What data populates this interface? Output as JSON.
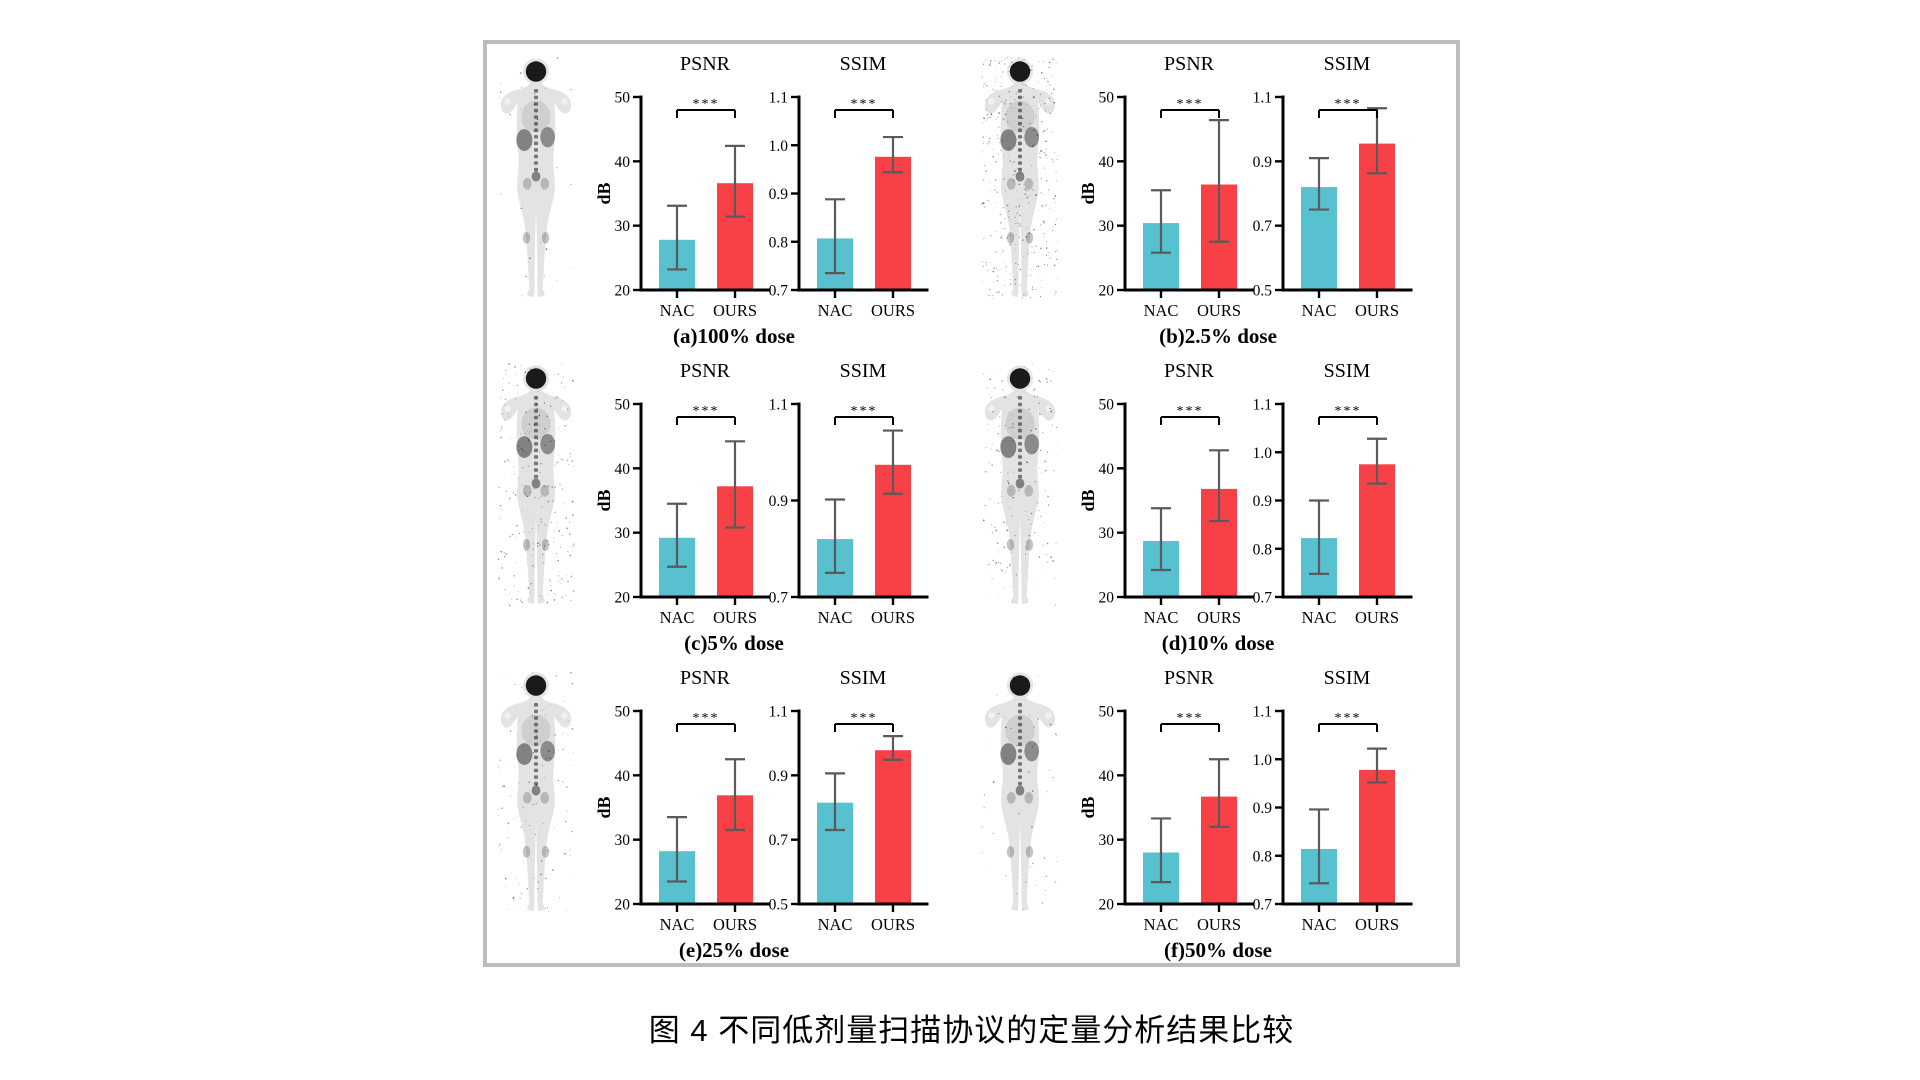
{
  "figure": {
    "caption": "图 4 不同低剂量扫描协议的定量分析结果比较"
  },
  "colors": {
    "nac_bar": "#57c1cf",
    "ours_bar": "#f84146",
    "error_bar": "#5a5a5a",
    "axis": "#000000",
    "box_border": "#bcbcbc",
    "scan_body": "#e3e3e3",
    "scan_dark": "#1a1a1a"
  },
  "chart_data": [
    {
      "panel": "a",
      "dose_label": "(a)100% dose",
      "body_image": "whole-body-pet-scan",
      "body_noise": 0.04,
      "psnr": {
        "type": "bar",
        "title": "PSNR",
        "ylabel": "dB",
        "categories": [
          "NAC",
          "OURS"
        ],
        "values": [
          27.8,
          36.6
        ],
        "err_lo": [
          23.2,
          31.4
        ],
        "err_hi": [
          33.1,
          42.4
        ],
        "ylim": [
          20,
          50
        ],
        "yticks": [
          "20",
          "30",
          "40",
          "50"
        ],
        "significance": "***"
      },
      "ssim": {
        "type": "bar",
        "title": "SSIM",
        "ylabel": "",
        "categories": [
          "NAC",
          "OURS"
        ],
        "values": [
          0.807,
          0.976
        ],
        "err_lo": [
          0.735,
          0.944
        ],
        "err_hi": [
          0.888,
          1.017
        ],
        "ylim": [
          0.7,
          1.1
        ],
        "yticks": [
          "0.7",
          "0.8",
          "0.9",
          "1.0",
          "1.1"
        ],
        "significance": "***"
      }
    },
    {
      "panel": "b",
      "dose_label": "(b)2.5% dose",
      "body_image": "whole-body-pet-scan",
      "body_noise": 0.55,
      "psnr": {
        "type": "bar",
        "title": "PSNR",
        "ylabel": "dB",
        "categories": [
          "NAC",
          "OURS"
        ],
        "values": [
          30.4,
          36.4
        ],
        "err_lo": [
          25.8,
          27.5
        ],
        "err_hi": [
          35.5,
          46.4
        ],
        "ylim": [
          20,
          50
        ],
        "yticks": [
          "20",
          "30",
          "40",
          "50"
        ],
        "significance": "***"
      },
      "ssim": {
        "type": "bar",
        "title": "SSIM",
        "ylabel": "",
        "categories": [
          "NAC",
          "OURS"
        ],
        "values": [
          0.82,
          0.955
        ],
        "err_lo": [
          0.75,
          0.863
        ],
        "err_hi": [
          0.91,
          1.065
        ],
        "ylim": [
          0.5,
          1.1
        ],
        "yticks": [
          "0.5",
          "0.7",
          "0.9",
          "1.1"
        ],
        "significance": "***"
      }
    },
    {
      "panel": "c",
      "dose_label": "(c)5% dose",
      "body_image": "whole-body-pet-scan",
      "body_noise": 0.35,
      "psnr": {
        "type": "bar",
        "title": "PSNR",
        "ylabel": "dB",
        "categories": [
          "NAC",
          "OURS"
        ],
        "values": [
          29.2,
          37.2
        ],
        "err_lo": [
          24.7,
          30.8
        ],
        "err_hi": [
          34.5,
          44.2
        ],
        "ylim": [
          20,
          50
        ],
        "yticks": [
          "20",
          "30",
          "40",
          "50"
        ],
        "significance": "***"
      },
      "ssim": {
        "type": "bar",
        "title": "SSIM",
        "ylabel": "",
        "categories": [
          "NAC",
          "OURS"
        ],
        "values": [
          0.82,
          0.974
        ],
        "err_lo": [
          0.75,
          0.914
        ],
        "err_hi": [
          0.902,
          1.045
        ],
        "ylim": [
          0.7,
          1.1
        ],
        "yticks": [
          "0.7",
          "0.9",
          "1.1"
        ],
        "significance": "***"
      }
    },
    {
      "panel": "d",
      "dose_label": "(d)10% dose",
      "body_image": "whole-body-pet-scan",
      "body_noise": 0.25,
      "psnr": {
        "type": "bar",
        "title": "PSNR",
        "ylabel": "dB",
        "categories": [
          "NAC",
          "OURS"
        ],
        "values": [
          28.7,
          36.8
        ],
        "err_lo": [
          24.2,
          31.8
        ],
        "err_hi": [
          33.8,
          42.8
        ],
        "ylim": [
          20,
          50
        ],
        "yticks": [
          "20",
          "30",
          "40",
          "50"
        ],
        "significance": "***"
      },
      "ssim": {
        "type": "bar",
        "title": "SSIM",
        "ylabel": "",
        "categories": [
          "NAC",
          "OURS"
        ],
        "values": [
          0.822,
          0.975
        ],
        "err_lo": [
          0.748,
          0.935
        ],
        "err_hi": [
          0.9,
          1.028
        ],
        "ylim": [
          0.7,
          1.1
        ],
        "yticks": [
          "0.7",
          "0.8",
          "0.9",
          "1.0",
          "1.1"
        ],
        "significance": "***"
      }
    },
    {
      "panel": "e",
      "dose_label": "(e)25% dose",
      "body_image": "whole-body-pet-scan",
      "body_noise": 0.15,
      "psnr": {
        "type": "bar",
        "title": "PSNR",
        "ylabel": "dB",
        "categories": [
          "NAC",
          "OURS"
        ],
        "values": [
          28.2,
          36.9
        ],
        "err_lo": [
          23.5,
          31.5
        ],
        "err_hi": [
          33.5,
          42.5
        ],
        "ylim": [
          20,
          50
        ],
        "yticks": [
          "20",
          "30",
          "40",
          "50"
        ],
        "significance": "***"
      },
      "ssim": {
        "type": "bar",
        "title": "SSIM",
        "ylabel": "",
        "categories": [
          "NAC",
          "OURS"
        ],
        "values": [
          0.815,
          0.978
        ],
        "err_lo": [
          0.73,
          0.948
        ],
        "err_hi": [
          0.906,
          1.022
        ],
        "ylim": [
          0.5,
          1.1
        ],
        "yticks": [
          "0.5",
          "0.7",
          "0.9",
          "1.1"
        ],
        "significance": "***"
      }
    },
    {
      "panel": "f",
      "dose_label": "(f)50% dose",
      "body_image": "whole-body-pet-scan",
      "body_noise": 0.07,
      "psnr": {
        "type": "bar",
        "title": "PSNR",
        "ylabel": "dB",
        "categories": [
          "NAC",
          "OURS"
        ],
        "values": [
          28.0,
          36.7
        ],
        "err_lo": [
          23.4,
          32.0
        ],
        "err_hi": [
          33.3,
          42.5
        ],
        "ylim": [
          20,
          50
        ],
        "yticks": [
          "20",
          "30",
          "40",
          "50"
        ],
        "significance": "***"
      },
      "ssim": {
        "type": "bar",
        "title": "SSIM",
        "ylabel": "",
        "categories": [
          "NAC",
          "OURS"
        ],
        "values": [
          0.814,
          0.978
        ],
        "err_lo": [
          0.743,
          0.952
        ],
        "err_hi": [
          0.896,
          1.022
        ],
        "ylim": [
          0.7,
          1.1
        ],
        "yticks": [
          "0.7",
          "0.8",
          "0.9",
          "1.0",
          "1.1"
        ],
        "significance": "***"
      }
    }
  ]
}
